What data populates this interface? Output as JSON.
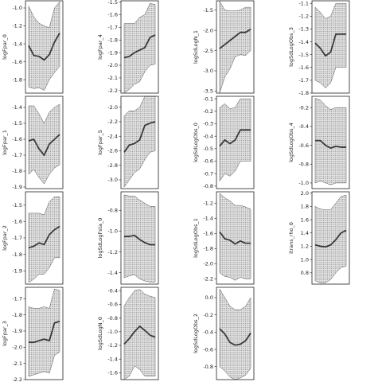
{
  "chart_data": [
    {
      "type": "line",
      "ylabel": "logFpar_0",
      "yticks": [
        -1.0,
        -1.2,
        -1.4,
        -1.6,
        -1.8
      ],
      "ylim": [
        -1.95,
        -0.92
      ],
      "x": [
        0,
        1,
        2,
        3,
        4,
        5,
        6
      ],
      "mean": [
        -1.42,
        -1.53,
        -1.54,
        -1.58,
        -1.52,
        -1.38,
        -1.28
      ],
      "lower": [
        -1.88,
        -1.9,
        -1.89,
        -1.92,
        -1.8,
        -1.72,
        -1.65
      ],
      "upper": [
        -0.98,
        -1.1,
        -1.17,
        -1.2,
        -1.22,
        -1.0,
        -0.93
      ]
    },
    {
      "type": "line",
      "ylabel": "logFpar_4",
      "yticks": [
        -1.5,
        -1.6,
        -1.7,
        -1.8,
        -1.9,
        -2.0,
        -2.1,
        -2.2
      ],
      "ylim": [
        -2.22,
        -1.49
      ],
      "x": [
        0,
        1,
        2,
        3,
        4,
        5,
        6
      ],
      "mean": [
        -1.94,
        -1.93,
        -1.9,
        -1.88,
        -1.86,
        -1.78,
        -1.76
      ],
      "lower": [
        -2.22,
        -2.19,
        -2.15,
        -2.13,
        -2.05,
        -2.0,
        -1.99
      ],
      "upper": [
        -1.67,
        -1.67,
        -1.67,
        -1.62,
        -1.6,
        -1.51,
        -1.52
      ]
    },
    {
      "type": "line",
      "ylabel": "logSdLogN_1",
      "yticks": [
        -1.5,
        -2.0,
        -2.5,
        -3.0,
        -3.5
      ],
      "ylim": [
        -3.55,
        -1.27
      ],
      "x": [
        0,
        1,
        2,
        3,
        4,
        5,
        6
      ],
      "mean": [
        -2.45,
        -2.35,
        -2.25,
        -2.15,
        -2.05,
        -2.05,
        -1.97
      ],
      "lower": [
        -3.55,
        -3.15,
        -2.95,
        -2.65,
        -2.6,
        -2.62,
        -2.5
      ],
      "upper": [
        -1.28,
        -1.5,
        -1.52,
        -1.52,
        -1.5,
        -1.43,
        -1.43
      ]
    },
    {
      "type": "line",
      "ylabel": "logSdLogObs_3",
      "yticks": [
        -1.1,
        -1.2,
        -1.3,
        -1.4,
        -1.5,
        -1.6,
        -1.7,
        -1.8
      ],
      "ylim": [
        -1.8,
        -1.08
      ],
      "x": [
        0,
        1,
        2,
        3,
        4,
        5,
        6
      ],
      "mean": [
        -1.41,
        -1.45,
        -1.51,
        -1.48,
        -1.34,
        -1.34,
        -1.34
      ],
      "lower": [
        -1.7,
        -1.72,
        -1.76,
        -1.72,
        -1.6,
        -1.6,
        -1.6
      ],
      "upper": [
        -1.13,
        -1.17,
        -1.22,
        -1.2,
        -1.1,
        -1.1,
        -1.1
      ]
    },
    {
      "type": "line",
      "ylabel": "logFpar_1",
      "yticks": [
        -1.4,
        -1.5,
        -1.6,
        -1.7,
        -1.8,
        -1.9
      ],
      "ylim": [
        -1.91,
        -1.33
      ],
      "x": [
        0,
        1,
        2,
        3,
        4,
        5,
        6
      ],
      "mean": [
        -1.61,
        -1.6,
        -1.66,
        -1.7,
        -1.63,
        -1.6,
        -1.57
      ],
      "lower": [
        -1.82,
        -1.79,
        -1.84,
        -1.88,
        -1.82,
        -1.78,
        -1.76
      ],
      "upper": [
        -1.39,
        -1.39,
        -1.44,
        -1.5,
        -1.43,
        -1.4,
        -1.38
      ]
    },
    {
      "type": "line",
      "ylabel": "logFpar_5",
      "yticks": [
        -2.0,
        -2.2,
        -2.4,
        -2.6,
        -2.8,
        -3.0
      ],
      "ylim": [
        -3.12,
        -1.85
      ],
      "x": [
        0,
        1,
        2,
        3,
        4,
        5,
        6
      ],
      "mean": [
        -2.62,
        -2.52,
        -2.5,
        -2.45,
        -2.25,
        -2.22,
        -2.2
      ],
      "lower": [
        -3.1,
        -3.0,
        -2.9,
        -2.85,
        -2.72,
        -2.62,
        -2.6
      ],
      "upper": [
        -2.12,
        -2.05,
        -2.05,
        -2.0,
        -1.85,
        -1.85,
        -1.85
      ]
    },
    {
      "type": "line",
      "ylabel": "logSdLogObs_0",
      "yticks": [
        -0.1,
        -0.2,
        -0.3,
        -0.4,
        -0.5,
        -0.6,
        -0.7,
        -0.8
      ],
      "ylim": [
        -0.82,
        -0.08
      ],
      "x": [
        0,
        1,
        2,
        3,
        4,
        5,
        6
      ],
      "mean": [
        -0.48,
        -0.43,
        -0.46,
        -0.43,
        -0.35,
        -0.35,
        -0.35
      ],
      "lower": [
        -0.76,
        -0.7,
        -0.72,
        -0.68,
        -0.6,
        -0.6,
        -0.6
      ],
      "upper": [
        -0.17,
        -0.14,
        -0.18,
        -0.17,
        -0.1,
        -0.1,
        -0.1
      ]
    },
    {
      "type": "line",
      "ylabel": "logSdLogObs_4",
      "yticks": [
        -0.2,
        -0.4,
        -0.6,
        -0.8,
        -1.0
      ],
      "ylim": [
        -1.06,
        -0.08
      ],
      "x": [
        0,
        1,
        2,
        3,
        4,
        5,
        6
      ],
      "mean": [
        -0.55,
        -0.55,
        -0.6,
        -0.63,
        -0.61,
        -0.62,
        -0.62
      ],
      "lower": [
        -1.0,
        -0.98,
        -1.0,
        -1.02,
        -1.0,
        -1.0,
        -1.0
      ],
      "upper": [
        -0.1,
        -0.12,
        -0.18,
        -0.22,
        -0.2,
        -0.2,
        -0.2
      ]
    },
    {
      "type": "line",
      "ylabel": "logFpar_2",
      "yticks": [
        -1.5,
        -1.6,
        -1.7,
        -1.8,
        -1.9
      ],
      "ylim": [
        -1.98,
        -1.42
      ],
      "x": [
        0,
        1,
        2,
        3,
        4,
        5,
        6
      ],
      "mean": [
        -1.76,
        -1.75,
        -1.73,
        -1.74,
        -1.68,
        -1.65,
        -1.63
      ],
      "lower": [
        -1.97,
        -1.95,
        -1.92,
        -1.92,
        -1.88,
        -1.82,
        -1.82
      ],
      "upper": [
        -1.55,
        -1.55,
        -1.55,
        -1.56,
        -1.48,
        -1.45,
        -1.45
      ]
    },
    {
      "type": "line",
      "ylabel": "logSdLogFsta_0",
      "yticks": [
        -0.8,
        -1.0,
        -1.2,
        -1.4
      ],
      "ylim": [
        -1.51,
        -0.62
      ],
      "x": [
        0,
        1,
        2,
        3,
        4,
        5,
        6
      ],
      "mean": [
        -1.05,
        -1.05,
        -1.04,
        -1.08,
        -1.11,
        -1.13,
        -1.13
      ],
      "lower": [
        -1.45,
        -1.43,
        -1.42,
        -1.46,
        -1.48,
        -1.49,
        -1.49
      ],
      "upper": [
        -0.65,
        -0.66,
        -0.66,
        -0.7,
        -0.73,
        -0.76,
        -0.76
      ]
    },
    {
      "type": "line",
      "ylabel": "logSdLogObs_1",
      "yticks": [
        -1.2,
        -1.4,
        -1.6,
        -1.8,
        -2.0,
        -2.2
      ],
      "ylim": [
        -2.27,
        -1.05
      ],
      "x": [
        0,
        1,
        2,
        3,
        4,
        5,
        6
      ],
      "mean": [
        -1.58,
        -1.67,
        -1.69,
        -1.74,
        -1.7,
        -1.73,
        -1.73
      ],
      "lower": [
        -2.12,
        -2.17,
        -2.18,
        -2.22,
        -2.18,
        -2.2,
        -2.2
      ],
      "upper": [
        -1.07,
        -1.13,
        -1.17,
        -1.23,
        -1.23,
        -1.25,
        -1.28
      ]
    },
    {
      "type": "line",
      "ylabel": "itrans_rho_0",
      "yticks": [
        2.0,
        1.8,
        1.6,
        1.4,
        1.2,
        1.0,
        0.8
      ],
      "ylim": [
        0.63,
        2.02
      ],
      "x": [
        0,
        1,
        2,
        3,
        4,
        5,
        6
      ],
      "mean": [
        1.22,
        1.2,
        1.19,
        1.22,
        1.3,
        1.4,
        1.44
      ],
      "lower": [
        0.68,
        0.65,
        0.65,
        0.7,
        0.8,
        0.88,
        0.9
      ],
      "upper": [
        1.8,
        1.76,
        1.75,
        1.75,
        1.85,
        1.95,
        1.97
      ]
    },
    {
      "type": "line",
      "ylabel": "logFpar_3",
      "yticks": [
        -1.7,
        -1.8,
        -1.9,
        -2.0,
        -2.1,
        -2.2
      ],
      "ylim": [
        -2.2,
        -1.63
      ],
      "x": [
        0,
        1,
        2,
        3,
        4,
        5,
        6
      ],
      "mean": [
        -1.97,
        -1.97,
        -1.96,
        -1.95,
        -1.96,
        -1.85,
        -1.84
      ],
      "lower": [
        -2.18,
        -2.17,
        -2.16,
        -2.15,
        -2.16,
        -2.05,
        -2.03
      ],
      "upper": [
        -1.75,
        -1.76,
        -1.76,
        -1.75,
        -1.76,
        -1.64,
        -1.65
      ]
    },
    {
      "type": "line",
      "ylabel": "logSdLogN_0",
      "yticks": [
        -0.4,
        -0.6,
        -0.8,
        -1.0,
        -1.2,
        -1.4,
        -1.6
      ],
      "ylim": [
        -1.7,
        -0.35
      ],
      "x": [
        0,
        1,
        2,
        3,
        4,
        5,
        6
      ],
      "mean": [
        -1.18,
        -1.1,
        -1.0,
        -0.92,
        -0.98,
        -1.05,
        -1.08
      ],
      "lower": [
        -1.7,
        -1.65,
        -1.5,
        -1.55,
        -1.65,
        -1.65,
        -1.65
      ],
      "upper": [
        -0.62,
        -0.5,
        -0.4,
        -0.38,
        -0.45,
        -0.48,
        -0.5
      ]
    },
    {
      "type": "line",
      "ylabel": "logSdLogObs_2",
      "yticks": [
        0.0,
        -0.2,
        -0.4,
        -0.6,
        -0.8
      ],
      "ylim": [
        -0.95,
        0.12
      ],
      "x": [
        0,
        1,
        2,
        3,
        4,
        5,
        6
      ],
      "mean": [
        -0.36,
        -0.42,
        -0.52,
        -0.55,
        -0.54,
        -0.5,
        -0.41
      ],
      "lower": [
        -0.8,
        -0.85,
        -0.92,
        -0.95,
        -0.93,
        -0.9,
        -0.82
      ],
      "upper": [
        0.1,
        0.0,
        -0.1,
        -0.14,
        -0.14,
        -0.1,
        0.0
      ]
    }
  ]
}
